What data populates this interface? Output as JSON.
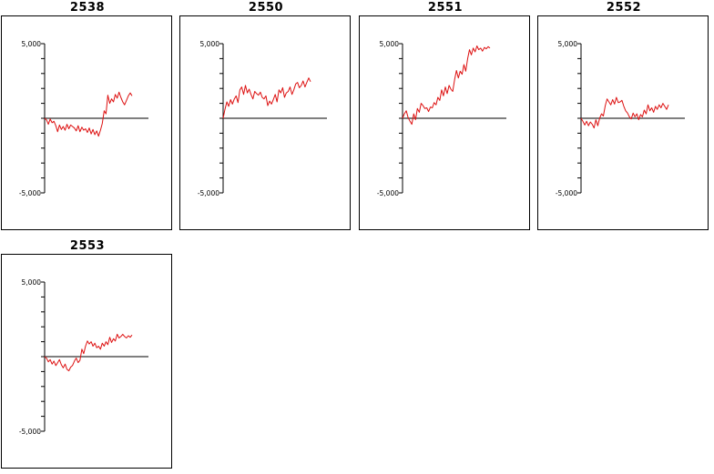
{
  "colors": {
    "series": "#dd1111",
    "axis": "#000000",
    "zero_line": "#333333"
  },
  "chart_data": [
    {
      "type": "line",
      "title": "2538",
      "ylim": [
        -5000,
        5000
      ],
      "y_tick_labels": [
        "5,000",
        "-5,000"
      ],
      "x": [
        0,
        1,
        2,
        3,
        4,
        5,
        6,
        7,
        8,
        9,
        10,
        11,
        12,
        13,
        14,
        15,
        16,
        17,
        18,
        19,
        20,
        21,
        22,
        23,
        24,
        25,
        26,
        27,
        28,
        29,
        30,
        31,
        32,
        33,
        34,
        35,
        36,
        37,
        38,
        39,
        40,
        41,
        42,
        43,
        44,
        45,
        46,
        47
      ],
      "y": [
        0,
        -100,
        -400,
        -50,
        -300,
        -200,
        -500,
        -900,
        -450,
        -750,
        -550,
        -800,
        -400,
        -700,
        -450,
        -550,
        -650,
        -850,
        -500,
        -900,
        -600,
        -800,
        -700,
        -950,
        -650,
        -1050,
        -750,
        -1100,
        -850,
        -1200,
        -800,
        -350,
        500,
        300,
        1550,
        1000,
        1300,
        1100,
        1600,
        1350,
        1750,
        1400,
        1100,
        900,
        1200,
        1500,
        1700,
        1500
      ]
    },
    {
      "type": "line",
      "title": "2550",
      "ylim": [
        -5000,
        5000
      ],
      "y_tick_labels": [
        "5,000",
        "-5,000"
      ],
      "x": [
        0,
        1,
        2,
        3,
        4,
        5,
        6,
        7,
        8,
        9,
        10,
        11,
        12,
        13,
        14,
        15,
        16,
        17,
        18,
        19,
        20,
        21,
        22,
        23,
        24,
        25,
        26,
        27,
        28,
        29,
        30,
        31,
        32,
        33,
        34,
        35,
        36,
        37,
        38,
        39,
        40,
        41,
        42,
        43,
        44,
        45,
        46,
        47
      ],
      "y": [
        0,
        600,
        1100,
        800,
        1250,
        950,
        1300,
        1500,
        1050,
        1900,
        2100,
        1600,
        2200,
        1700,
        1950,
        1600,
        1300,
        1800,
        1650,
        1550,
        1750,
        1400,
        1300,
        1500,
        850,
        1150,
        950,
        1250,
        1600,
        1100,
        1900,
        1700,
        2050,
        1400,
        1700,
        1800,
        2100,
        1600,
        1900,
        2300,
        2400,
        2050,
        2200,
        2500,
        2100,
        2400,
        2700,
        2450
      ]
    },
    {
      "type": "line",
      "title": "2551",
      "ylim": [
        -5000,
        5000
      ],
      "y_tick_labels": [
        "5,000",
        "-5,000"
      ],
      "x": [
        0,
        1,
        2,
        3,
        4,
        5,
        6,
        7,
        8,
        9,
        10,
        11,
        12,
        13,
        14,
        15,
        16,
        17,
        18,
        19,
        20,
        21,
        22,
        23,
        24,
        25,
        26,
        27,
        28,
        29,
        30,
        31,
        32,
        33,
        34,
        35,
        36,
        37,
        38,
        39,
        40,
        41,
        42,
        43,
        44,
        45,
        46,
        47
      ],
      "y": [
        0,
        300,
        500,
        50,
        -200,
        -400,
        300,
        -100,
        650,
        400,
        1000,
        850,
        650,
        700,
        450,
        750,
        700,
        1050,
        900,
        1400,
        1200,
        1900,
        1500,
        2100,
        1650,
        2200,
        1950,
        1800,
        2600,
        3200,
        2700,
        3150,
        2950,
        3600,
        3150,
        4000,
        4600,
        4250,
        4700,
        4450,
        4850,
        4600,
        4700,
        4500,
        4750,
        4650,
        4800,
        4700
      ]
    },
    {
      "type": "line",
      "title": "2552",
      "ylim": [
        -5000,
        5000
      ],
      "y_tick_labels": [
        "5,000",
        "-5,000"
      ],
      "x": [
        0,
        1,
        2,
        3,
        4,
        5,
        6,
        7,
        8,
        9,
        10,
        11,
        12,
        13,
        14,
        15,
        16,
        17,
        18,
        19,
        20,
        21,
        22,
        23,
        24,
        25,
        26,
        27,
        28,
        29,
        30,
        31,
        32,
        33,
        34,
        35,
        36,
        37,
        38,
        39,
        40,
        41,
        42,
        43,
        44,
        45,
        46,
        47
      ],
      "y": [
        0,
        -200,
        -450,
        -200,
        -500,
        -250,
        -400,
        -650,
        -100,
        -500,
        0,
        300,
        150,
        850,
        1300,
        1100,
        900,
        1250,
        950,
        1400,
        1050,
        1100,
        1200,
        800,
        500,
        350,
        100,
        -50,
        350,
        100,
        300,
        -100,
        250,
        100,
        550,
        300,
        900,
        500,
        700,
        400,
        800,
        600,
        900,
        700,
        1000,
        800,
        600,
        900
      ]
    },
    {
      "type": "line",
      "title": "2553",
      "ylim": [
        -5000,
        5000
      ],
      "y_tick_labels": [
        "5,000",
        "-5,000"
      ],
      "x": [
        0,
        1,
        2,
        3,
        4,
        5,
        6,
        7,
        8,
        9,
        10,
        11,
        12,
        13,
        14,
        15,
        16,
        17,
        18,
        19,
        20,
        21,
        22,
        23,
        24,
        25,
        26,
        27,
        28,
        29,
        30,
        31,
        32,
        33,
        34,
        35,
        36,
        37,
        38,
        39,
        40,
        41,
        42,
        43,
        44,
        45,
        46,
        47
      ],
      "y": [
        0,
        -100,
        -350,
        -200,
        -500,
        -300,
        -600,
        -400,
        -200,
        -550,
        -750,
        -500,
        -850,
        -950,
        -700,
        -600,
        -300,
        -100,
        -400,
        -250,
        500,
        200,
        700,
        1050,
        850,
        1000,
        700,
        900,
        600,
        700,
        500,
        900,
        700,
        1000,
        800,
        1300,
        950,
        1200,
        1050,
        1500,
        1250,
        1350,
        1500,
        1350,
        1250,
        1400,
        1300,
        1450
      ]
    }
  ]
}
